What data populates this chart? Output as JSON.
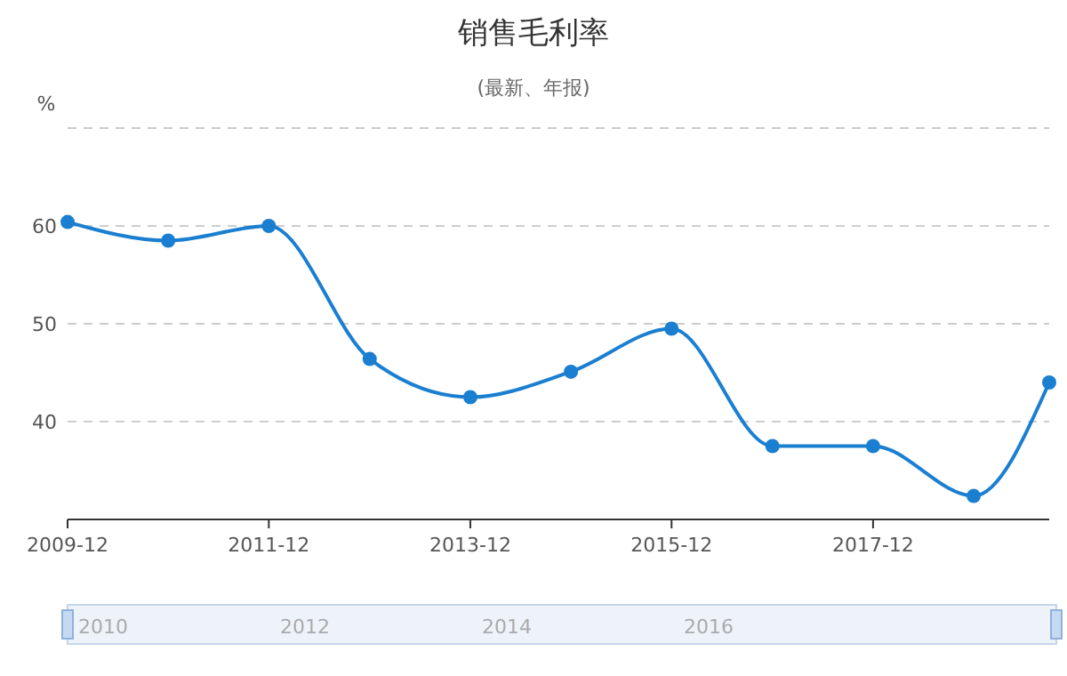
{
  "chart_data": {
    "type": "line",
    "title": "销售毛利率",
    "subtitle": "(最新、年报)",
    "ylabel": "%",
    "x": [
      "2009-12",
      "2010-12",
      "2011-12",
      "2012-12",
      "2013-12",
      "2014-12",
      "2015-12",
      "2016-12",
      "2017-12",
      "2018-12",
      "2019-09"
    ],
    "series": [
      {
        "color": "#1b7fd1",
        "values": [
          60.4,
          58.5,
          60,
          46.4,
          42.5,
          45.1,
          49.5,
          37.5,
          37.5,
          32.4,
          44
        ]
      }
    ],
    "xlim": [
      "2009-12",
      "2019-09"
    ],
    "xticks": [
      "2009-12",
      "2011-12",
      "2013-12",
      "2015-12",
      "2017-12"
    ],
    "ylim": [
      30,
      70
    ],
    "yticks": [
      {
        "value": 30,
        "label": null
      },
      40,
      50,
      60,
      {
        "value": 70,
        "label": null
      }
    ],
    "grid": "y",
    "marker": "circle",
    "line_style": "solid",
    "annotations": [
      "2010",
      "2012",
      "2014",
      "2016"
    ]
  }
}
